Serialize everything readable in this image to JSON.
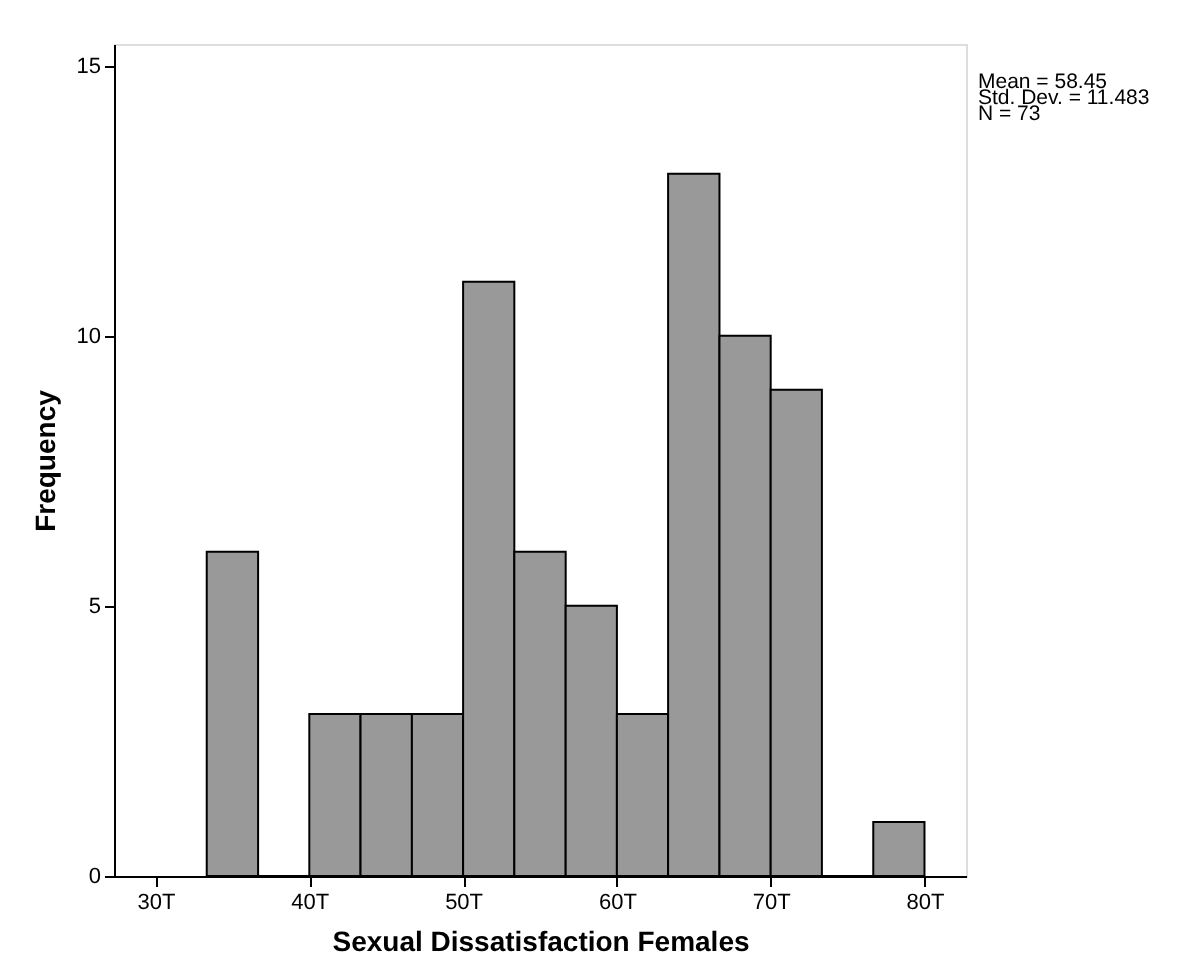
{
  "chart_data": {
    "type": "histogram",
    "xlabel": "Sexual Dissatisfaction Females",
    "ylabel": "Frequency",
    "bins": [
      33.33,
      36.67,
      40,
      43.33,
      46.67,
      50,
      53.33,
      56.67,
      60,
      63.33,
      66.67,
      70,
      73.33,
      76.67,
      80
    ],
    "values": [
      6,
      0,
      3,
      3,
      3,
      11,
      6,
      5,
      3,
      13,
      10,
      9,
      0,
      1
    ],
    "color": "#999999",
    "xlim": [
      27.3,
      82.7
    ],
    "xticks": [
      {
        "value": 30,
        "label": "30T"
      },
      {
        "value": 40,
        "label": "40T"
      },
      {
        "value": 50,
        "label": "50T"
      },
      {
        "value": 60,
        "label": "60T"
      },
      {
        "value": 70,
        "label": "70T"
      },
      {
        "value": 80,
        "label": "80T"
      }
    ],
    "ylim": [
      0,
      15.4
    ],
    "yticks": [
      0,
      5,
      10,
      15
    ],
    "grid": false,
    "annotations": [
      "Mean = 58.45",
      "Std. Dev. = 11.483",
      "N = 73"
    ]
  }
}
